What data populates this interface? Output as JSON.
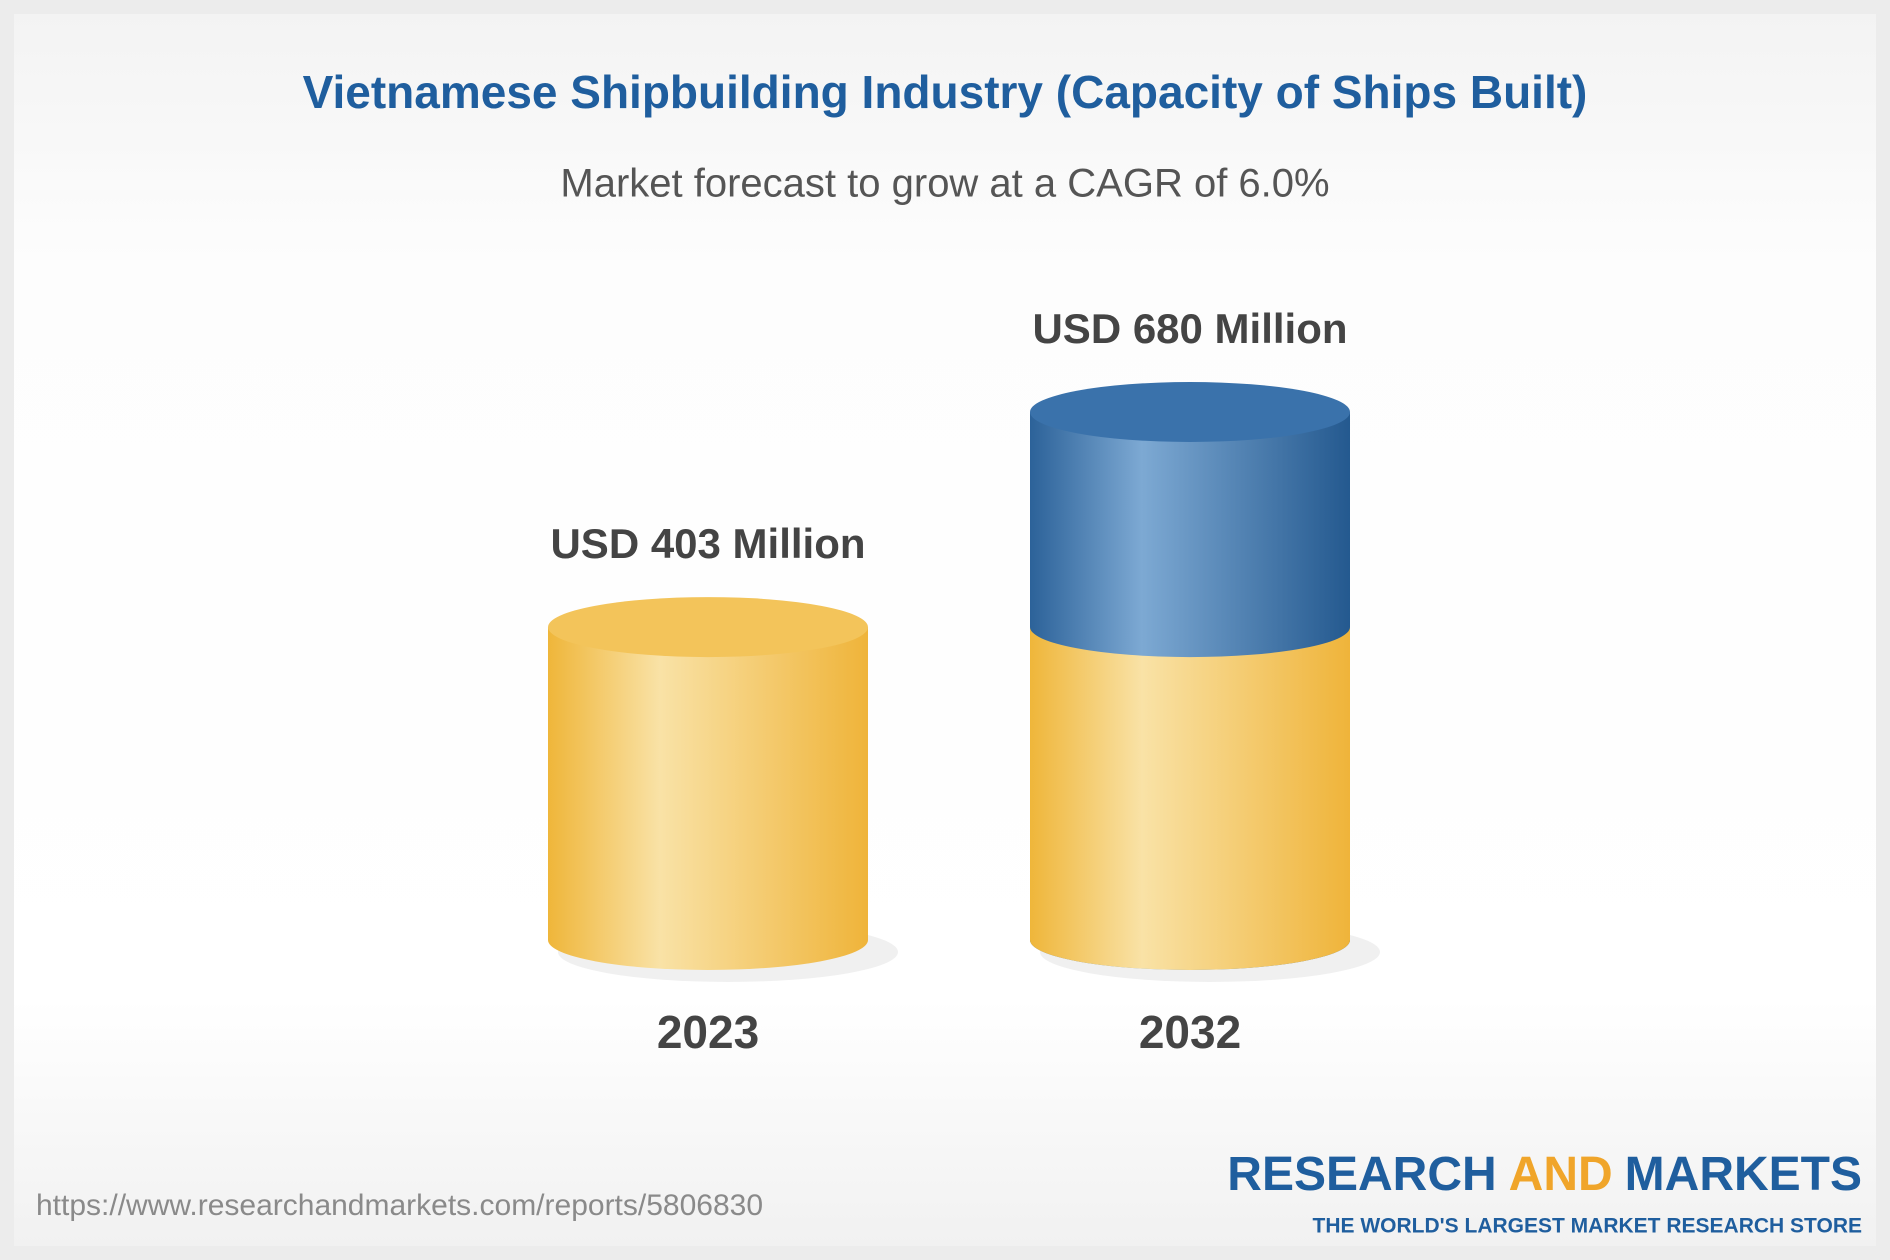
{
  "chart_data": {
    "type": "cylinder_bar",
    "title": "Vietnamese Shipbuilding Industry (Capacity of Ships Built)",
    "subtitle": "Market forecast to grow at a CAGR of 6.0%",
    "categories": [
      "2023",
      "2032"
    ],
    "values": [
      403,
      680
    ],
    "value_labels": [
      "USD 403 Million",
      "USD 680 Million"
    ],
    "color": "#f2bd48",
    "growth_color": "#2f68a2"
  },
  "footer": {
    "source": "https://www.researchandmarkets.com/reports/5806830",
    "brand": [
      "RESEARCH",
      "AND",
      "MARKETS"
    ],
    "tagline": "THE WORLD'S LARGEST MARKET RESEARCH STORE"
  }
}
